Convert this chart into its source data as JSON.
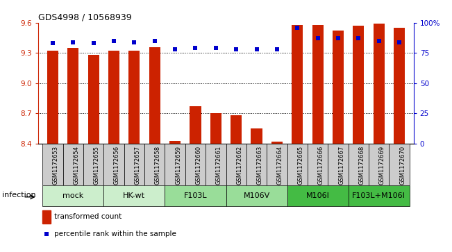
{
  "title": "GDS4998 / 10568939",
  "samples": [
    "GSM1172653",
    "GSM1172654",
    "GSM1172655",
    "GSM1172656",
    "GSM1172657",
    "GSM1172658",
    "GSM1172659",
    "GSM1172660",
    "GSM1172661",
    "GSM1172662",
    "GSM1172663",
    "GSM1172664",
    "GSM1172665",
    "GSM1172666",
    "GSM1172667",
    "GSM1172668",
    "GSM1172669",
    "GSM1172670"
  ],
  "bar_values": [
    9.32,
    9.35,
    9.28,
    9.32,
    9.32,
    9.36,
    8.43,
    8.77,
    8.7,
    8.68,
    8.55,
    8.42,
    9.58,
    9.58,
    9.52,
    9.57,
    9.59,
    9.55
  ],
  "dot_values": [
    83,
    84,
    83,
    85,
    84,
    85,
    78,
    79,
    79,
    78,
    78,
    78,
    96,
    87,
    87,
    87,
    85,
    84
  ],
  "ylim_left": [
    8.4,
    9.6
  ],
  "ylim_right": [
    0,
    100
  ],
  "yticks_left": [
    8.4,
    8.7,
    9.0,
    9.3,
    9.6
  ],
  "yticks_right": [
    0,
    25,
    50,
    75,
    100
  ],
  "ytick_right_labels": [
    "0",
    "25",
    "50",
    "75",
    "100%"
  ],
  "bar_color": "#cc2200",
  "dot_color": "#0000cc",
  "bar_width": 0.55,
  "group_spans": [
    {
      "label": "mock",
      "start": 0,
      "end": 2,
      "color": "#cceecc"
    },
    {
      "label": "HK-wt",
      "start": 3,
      "end": 5,
      "color": "#cceecc"
    },
    {
      "label": "F103L",
      "start": 6,
      "end": 8,
      "color": "#99dd99"
    },
    {
      "label": "M106V",
      "start": 9,
      "end": 11,
      "color": "#99dd99"
    },
    {
      "label": "M106I",
      "start": 12,
      "end": 14,
      "color": "#44bb44"
    },
    {
      "label": "F103L+M106I",
      "start": 15,
      "end": 17,
      "color": "#44bb44"
    }
  ],
  "infection_label": "infection",
  "legend_bar_label": "transformed count",
  "legend_dot_label": "percentile rank within the sample",
  "bg_color": "#ffffff",
  "sample_box_color": "#cccccc",
  "title_fontsize": 9,
  "axis_fontsize": 8,
  "tick_fontsize": 7.5,
  "sample_fontsize": 6,
  "group_fontsize": 8,
  "legend_fontsize": 7.5
}
